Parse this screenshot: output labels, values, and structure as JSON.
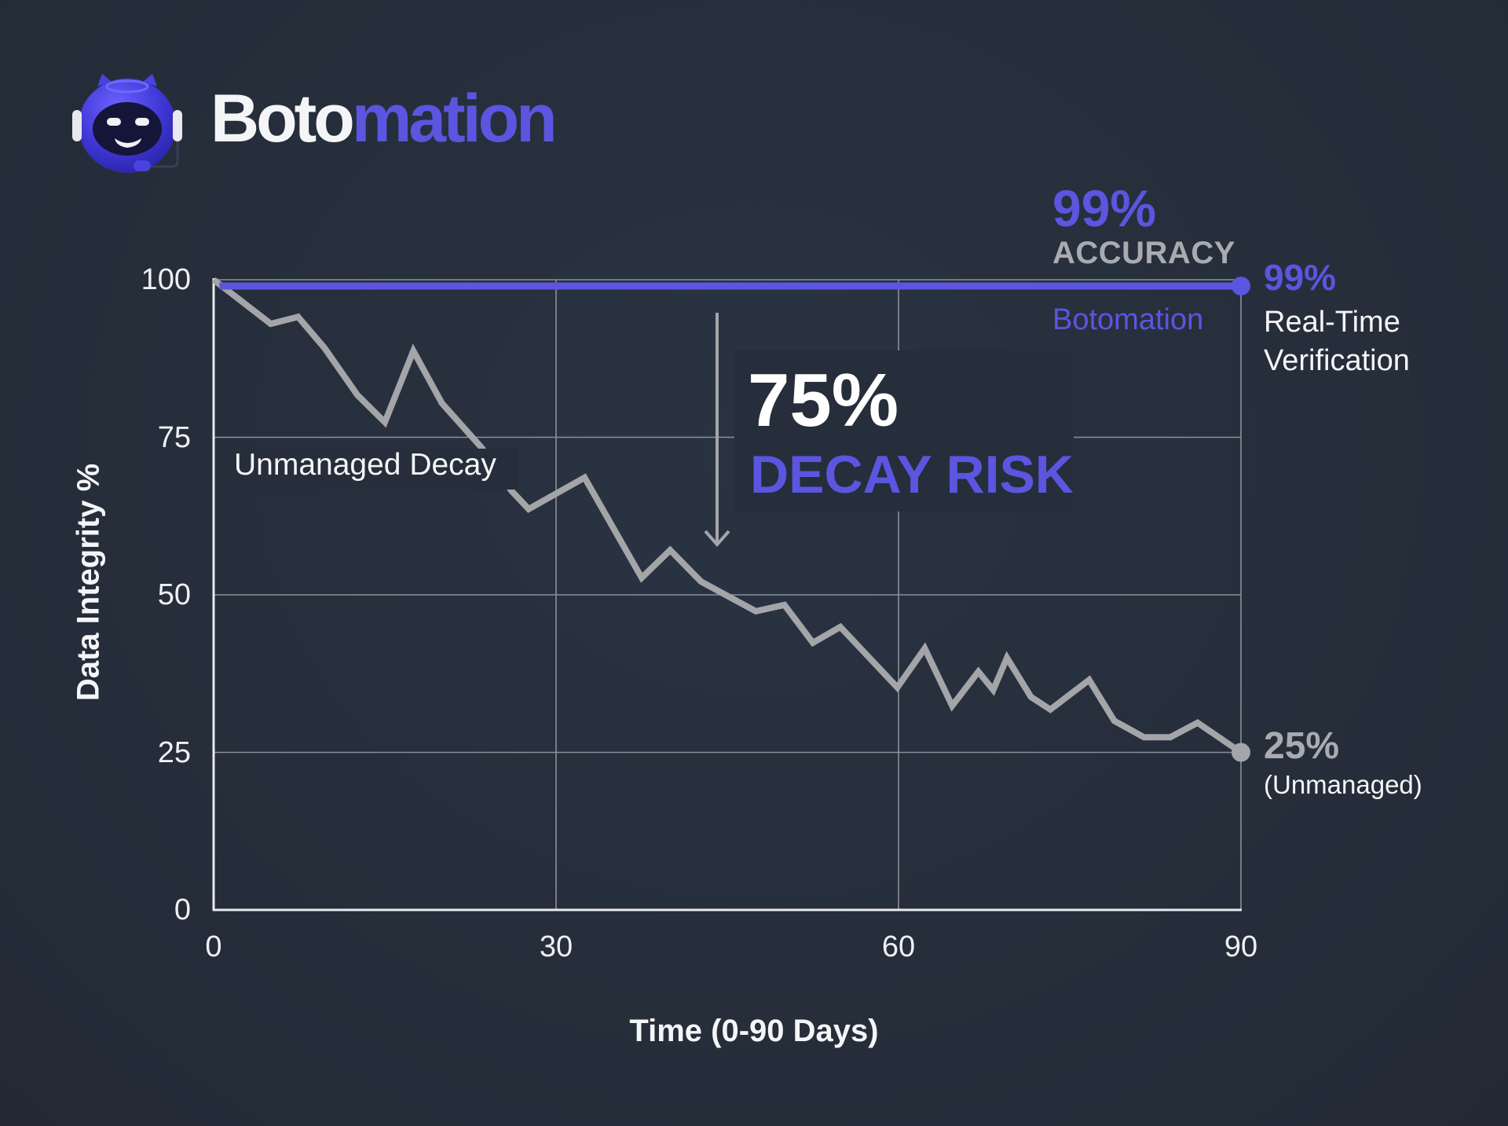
{
  "brand": {
    "name_part1": "Boto",
    "name_part2": "mation",
    "logo_icon": "robot-headset-icon",
    "brand_color": "#5b55e0"
  },
  "colors": {
    "background": "#262e3b",
    "botomation_series": "#5b55e0",
    "unmanaged_series": "#a3a5a9",
    "grid": "#8a909a",
    "axis": "#e8eaee"
  },
  "callouts": {
    "accuracy_value": "99%",
    "accuracy_label": "ACCURACY",
    "botomation_label": "Botomation",
    "end_botomation_value": "99%",
    "end_botomation_desc_line1": "Real-Time",
    "end_botomation_desc_line2": "Verification",
    "end_unmanaged_value": "25%",
    "end_unmanaged_desc": "(Unmanaged)",
    "unmanaged_label": "Unmanaged Decay",
    "decay_value": "75%",
    "decay_label": "DECAY RISK"
  },
  "chart_data": {
    "type": "line",
    "title": "",
    "xlabel": "Time (0-90 Days)",
    "ylabel": "Data Integrity %",
    "xlim": [
      0,
      90
    ],
    "ylim": [
      0,
      100
    ],
    "xticks": [
      0,
      30,
      60,
      90
    ],
    "yticks": [
      0,
      25,
      50,
      75,
      100
    ],
    "grid": true,
    "series": [
      {
        "name": "Botomation",
        "color": "#5b55e0",
        "x": [
          0.5,
          90
        ],
        "values": [
          99,
          99
        ],
        "end_label": "99% Real-Time Verification"
      },
      {
        "name": "Unmanaged Decay",
        "color": "#a3a5a9",
        "x": [
          0,
          2.3,
          5.0,
          7.4,
          9.7,
          12.6,
          15.0,
          17.5,
          20.0,
          23.5,
          26.1,
          27.6,
          32.5,
          37.5,
          40.0,
          42.7,
          47.5,
          50.0,
          52.5,
          54.9,
          59.9,
          62.3,
          64.7,
          67.0,
          68.3,
          69.5,
          71.6,
          73.3,
          76.7,
          78.9,
          81.5,
          83.8,
          86.2,
          90
        ],
        "values": [
          100,
          96.8,
          93.0,
          94.1,
          89.2,
          81.7,
          77.4,
          88.7,
          80.4,
          73.3,
          66.5,
          63.6,
          68.6,
          52.7,
          57.1,
          52.1,
          47.4,
          48.4,
          42.4,
          44.9,
          35.3,
          41.5,
          32.4,
          37.8,
          34.9,
          40.0,
          33.8,
          31.8,
          36.5,
          30.0,
          27.4,
          27.4,
          29.7,
          25
        ],
        "end_label": "25% (Unmanaged)"
      }
    ],
    "annotations": [
      {
        "text": "99% ACCURACY",
        "position": "top-right above Botomation line"
      },
      {
        "text": "75% DECAY RISK",
        "position": "center, with downward arrow"
      },
      {
        "text": "Unmanaged Decay",
        "position": "near day 5-25, y≈70"
      }
    ],
    "legend": "inline labels"
  }
}
